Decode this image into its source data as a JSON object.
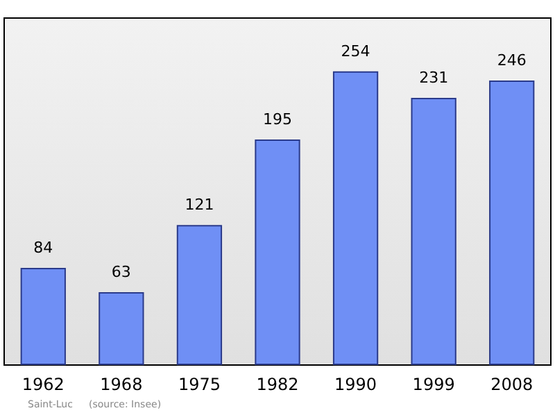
{
  "chart_data": {
    "type": "bar",
    "categories": [
      "1962",
      "1968",
      "1975",
      "1982",
      "1990",
      "1999",
      "2008"
    ],
    "values": [
      84,
      63,
      121,
      195,
      254,
      231,
      246
    ],
    "color": "#6f8ff5",
    "data_labels": true,
    "annotations": [
      "Saint-Luc",
      "(source: Insee)"
    ]
  }
}
